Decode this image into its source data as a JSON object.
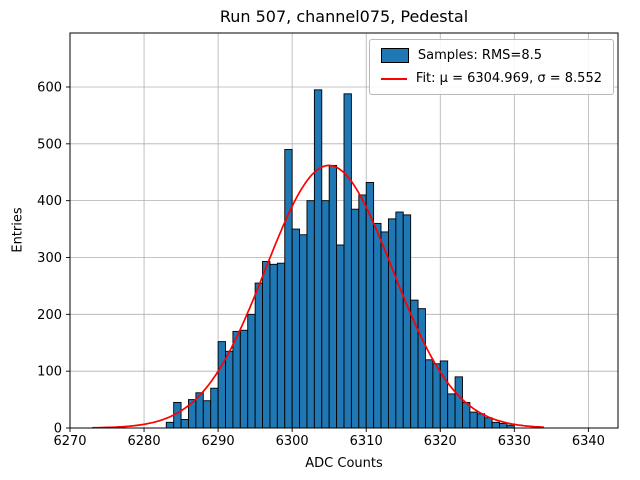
{
  "chart_data": {
    "type": "bar",
    "title": "Run 507, channel075, Pedestal",
    "xlabel": "ADC Counts",
    "ylabel": "Entries",
    "xlim": [
      6270,
      6344
    ],
    "ylim": [
      0,
      695
    ],
    "xticks": [
      6270,
      6280,
      6290,
      6300,
      6310,
      6320,
      6330,
      6340
    ],
    "yticks": [
      0,
      100,
      200,
      300,
      400,
      500,
      600
    ],
    "grid": true,
    "bar_color": "#1f77b4",
    "bar_edge_color": "#000000",
    "fit_color": "#ff0000",
    "bin_start": 6283,
    "bin_width": 1,
    "counts": [
      10,
      45,
      15,
      50,
      62,
      48,
      70,
      152,
      135,
      170,
      172,
      200,
      255,
      293,
      288,
      290,
      490,
      350,
      340,
      400,
      595,
      400,
      462,
      322,
      588,
      385,
      410,
      432,
      360,
      345,
      368,
      380,
      375,
      225,
      210,
      120,
      113,
      118,
      60,
      90,
      45,
      28,
      25,
      18,
      10,
      8,
      5
    ],
    "fit": {
      "mu": 6304.969,
      "sigma": 8.552,
      "amplitude": 462,
      "x_start": 6273,
      "x_end": 6334
    },
    "legend": [
      {
        "label": "Samples: RMS=8.5",
        "type": "patch"
      },
      {
        "label": "Fit: μ = 6304.969, σ = 8.552",
        "type": "line"
      }
    ]
  }
}
